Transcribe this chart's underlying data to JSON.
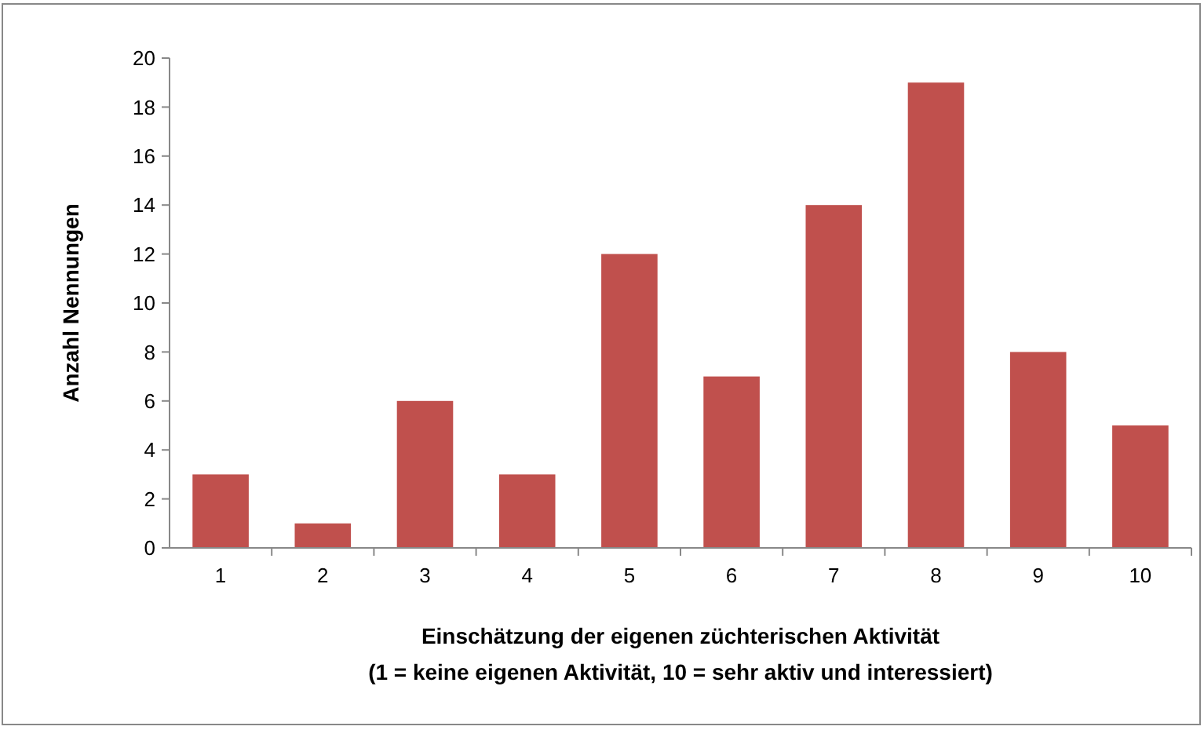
{
  "chart_data": {
    "type": "bar",
    "xlabel": "Einschätzung der eigenen züchterischen Aktivität\n(1 = keine eigenen Aktivität, 10 = sehr aktiv und interessiert)",
    "ylabel": "Anzahl Nennungen",
    "categories": [
      "1",
      "2",
      "3",
      "4",
      "5",
      "6",
      "7",
      "8",
      "9",
      "10"
    ],
    "values": [
      3,
      1,
      6,
      3,
      12,
      7,
      14,
      19,
      8,
      5
    ],
    "color": "#c0504d",
    "ylim": [
      0,
      20
    ],
    "yticks": [
      0,
      2,
      4,
      6,
      8,
      10,
      12,
      14,
      16,
      18,
      20
    ],
    "grid": false
  }
}
